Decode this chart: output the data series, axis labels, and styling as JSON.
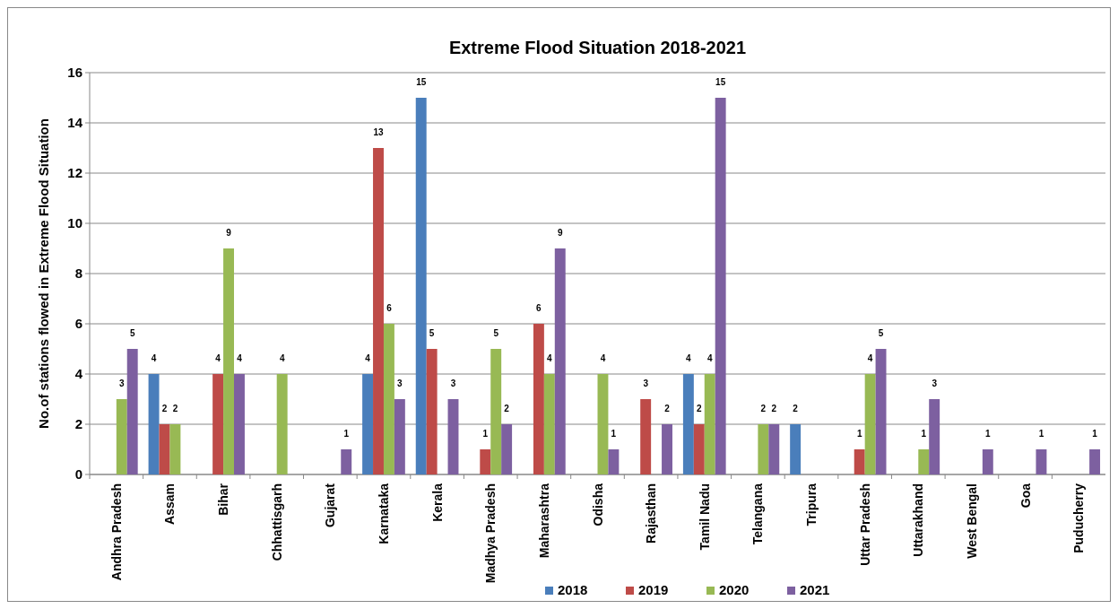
{
  "chart_data": {
    "type": "bar",
    "title": "Extreme Flood Situation 2018-2021",
    "ylabel": "No.of stations flowed in Extreme Flood Situation",
    "categories": [
      "Andhra Pradesh",
      "Assam",
      "Bihar",
      "Chhattisgarh",
      "Gujarat",
      "Karnataka",
      "Kerala",
      "Madhya Pradesh",
      "Maharashtra",
      "Odisha",
      "Rajasthan",
      "Tamil Nadu",
      "Telangana",
      "Tripura",
      "Uttar Pradesh",
      "Uttarakhand",
      "West Bengal",
      "Goa",
      "Puducherry"
    ],
    "series": [
      {
        "name": "2018",
        "color": "#4a7ebb",
        "values": [
          null,
          4,
          null,
          null,
          null,
          4,
          15,
          null,
          null,
          null,
          null,
          4,
          null,
          2,
          null,
          null,
          null,
          null,
          null
        ]
      },
      {
        "name": "2019",
        "color": "#be4b48",
        "values": [
          null,
          2,
          4,
          null,
          null,
          13,
          5,
          1,
          6,
          null,
          3,
          2,
          null,
          null,
          1,
          null,
          null,
          null,
          null
        ]
      },
      {
        "name": "2020",
        "color": "#98b954",
        "values": [
          3,
          2,
          9,
          4,
          null,
          6,
          null,
          5,
          4,
          4,
          null,
          4,
          2,
          null,
          4,
          1,
          null,
          null,
          null
        ]
      },
      {
        "name": "2021",
        "color": "#7d60a0",
        "values": [
          5,
          null,
          4,
          null,
          1,
          3,
          3,
          2,
          9,
          1,
          2,
          15,
          2,
          null,
          5,
          3,
          1,
          1,
          1
        ]
      }
    ],
    "ylim": [
      0,
      16
    ],
    "yticks": [
      0,
      2,
      4,
      6,
      8,
      10,
      12,
      14,
      16
    ],
    "grid": "y",
    "legend": "bottom",
    "data_labels": true
  }
}
